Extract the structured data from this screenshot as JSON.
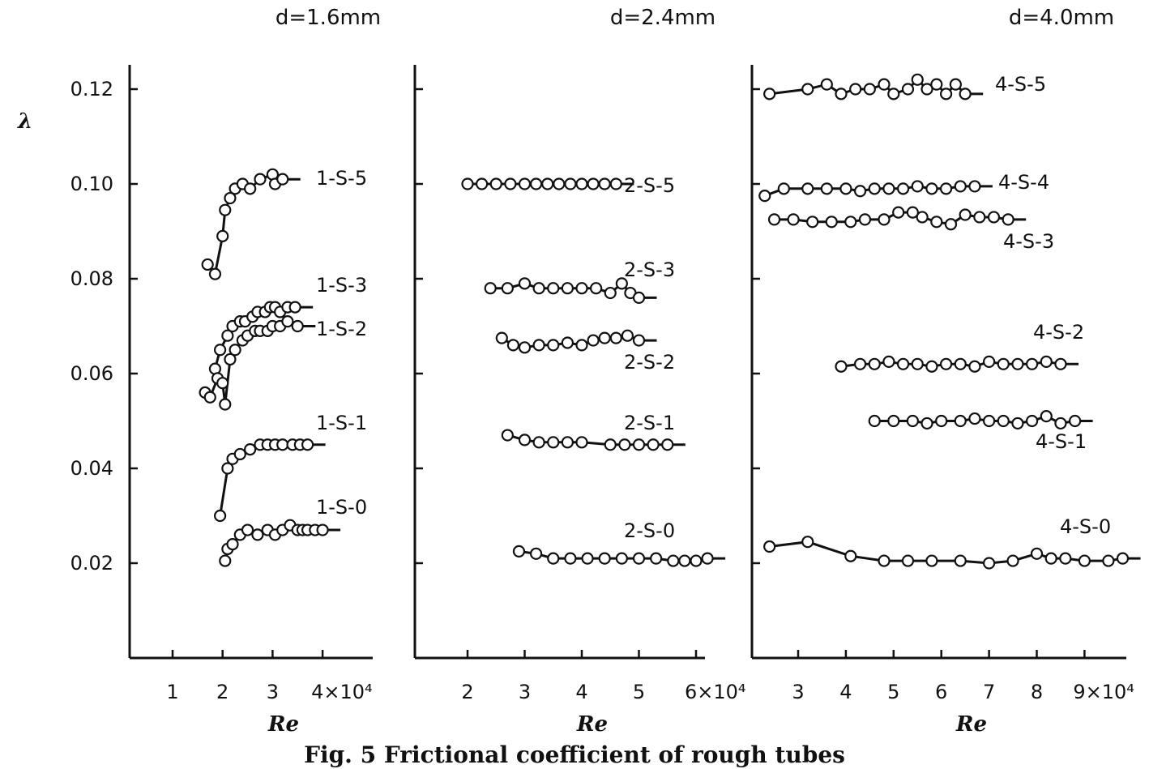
{
  "caption": "Fig. 5  Frictional coefficient of rough tubes",
  "y_label": "λ",
  "x_label": "Re",
  "chart_data": [
    {
      "type": "line",
      "title": "d=1.6mm",
      "xlabel": "Re",
      "ylabel": "λ",
      "xlim": [
        0,
        5
      ],
      "ylim": [
        0,
        0.12
      ],
      "x_ticks": [
        1,
        2,
        3,
        4
      ],
      "x_tick_labels": [
        "1",
        "2",
        "3",
        "4×10⁴"
      ],
      "y_ticks": [
        0.02,
        0.04,
        0.06,
        0.08,
        0.1,
        0.12
      ],
      "y_tick_labels": [
        "0.02",
        "0.04",
        "0.06",
        "0.08",
        "0.10",
        "0.12"
      ],
      "x_unit": "×10⁴",
      "series": [
        {
          "name": "1-S-5",
          "x": [
            1.7,
            1.85,
            2.0,
            2.05,
            2.15,
            2.25,
            2.4,
            2.55,
            2.75,
            3.0,
            3.05,
            3.2
          ],
          "y": [
            0.083,
            0.081,
            0.089,
            0.0945,
            0.097,
            0.099,
            0.1,
            0.099,
            0.101,
            0.102,
            0.1,
            0.101
          ]
        },
        {
          "name": "1-S-3",
          "x": [
            1.85,
            1.95,
            2.1,
            2.2,
            2.35,
            2.45,
            2.6,
            2.7,
            2.85,
            2.95,
            3.05,
            3.15,
            3.3,
            3.45
          ],
          "y": [
            0.061,
            0.065,
            0.068,
            0.07,
            0.071,
            0.071,
            0.072,
            0.073,
            0.073,
            0.074,
            0.074,
            0.073,
            0.074,
            0.074
          ]
        },
        {
          "name": "1-S-2",
          "x": [
            1.65,
            1.75,
            1.9,
            2.0,
            2.05,
            2.15,
            2.25,
            2.4,
            2.5,
            2.65,
            2.75,
            2.9,
            3.0,
            3.15,
            3.3,
            3.5
          ],
          "y": [
            0.056,
            0.055,
            0.059,
            0.058,
            0.0535,
            0.063,
            0.065,
            0.067,
            0.068,
            0.069,
            0.069,
            0.069,
            0.07,
            0.07,
            0.071,
            0.07
          ]
        },
        {
          "name": "1-S-1",
          "x": [
            1.95,
            2.1,
            2.2,
            2.35,
            2.55,
            2.75,
            2.9,
            3.05,
            3.2,
            3.4,
            3.55,
            3.7
          ],
          "y": [
            0.03,
            0.04,
            0.042,
            0.043,
            0.044,
            0.045,
            0.045,
            0.045,
            0.045,
            0.045,
            0.045,
            0.045
          ]
        },
        {
          "name": "1-S-0",
          "x": [
            2.05,
            2.1,
            2.2,
            2.35,
            2.5,
            2.7,
            2.9,
            3.05,
            3.2,
            3.35,
            3.5,
            3.6,
            3.7,
            3.85,
            4.0
          ],
          "y": [
            0.0205,
            0.023,
            0.024,
            0.026,
            0.027,
            0.026,
            0.027,
            0.026,
            0.027,
            0.028,
            0.027,
            0.027,
            0.027,
            0.027,
            0.027
          ]
        }
      ]
    },
    {
      "type": "line",
      "title": "d=2.4mm",
      "xlabel": "Re",
      "ylabel": "λ",
      "xlim": [
        1,
        7
      ],
      "ylim": [
        0,
        0.12
      ],
      "x_ticks": [
        2,
        3,
        4,
        5,
        6
      ],
      "x_tick_labels": [
        "2",
        "3",
        "4",
        "5",
        "6×10⁴"
      ],
      "y_ticks": [
        0.02,
        0.04,
        0.06,
        0.08,
        0.1,
        0.12
      ],
      "x_unit": "×10⁴",
      "series": [
        {
          "name": "2-S-5",
          "x": [
            2.0,
            2.25,
            2.5,
            2.75,
            3.0,
            3.2,
            3.4,
            3.6,
            3.8,
            4.0,
            4.2,
            4.4,
            4.6
          ],
          "y": [
            0.1,
            0.1,
            0.1,
            0.1,
            0.1,
            0.1,
            0.1,
            0.1,
            0.1,
            0.1,
            0.1,
            0.1,
            0.1
          ]
        },
        {
          "name": "2-S-3",
          "x": [
            2.4,
            2.7,
            3.0,
            3.25,
            3.5,
            3.75,
            4.0,
            4.25,
            4.5,
            4.7,
            4.85,
            5.0
          ],
          "y": [
            0.078,
            0.078,
            0.079,
            0.078,
            0.078,
            0.078,
            0.078,
            0.078,
            0.077,
            0.079,
            0.077,
            0.076
          ]
        },
        {
          "name": "2-S-2",
          "x": [
            2.6,
            2.8,
            3.0,
            3.25,
            3.5,
            3.75,
            4.0,
            4.2,
            4.4,
            4.6,
            4.8,
            5.0
          ],
          "y": [
            0.0675,
            0.066,
            0.0655,
            0.066,
            0.066,
            0.0665,
            0.066,
            0.067,
            0.0675,
            0.0675,
            0.068,
            0.067
          ]
        },
        {
          "name": "2-S-1",
          "x": [
            2.7,
            3.0,
            3.25,
            3.5,
            3.75,
            4.0,
            4.5,
            4.75,
            5.0,
            5.25,
            5.5
          ],
          "y": [
            0.047,
            0.046,
            0.0455,
            0.0455,
            0.0455,
            0.0455,
            0.045,
            0.045,
            0.045,
            0.045,
            0.045
          ]
        },
        {
          "name": "2-S-0",
          "x": [
            2.9,
            3.2,
            3.5,
            3.8,
            4.1,
            4.4,
            4.7,
            5.0,
            5.3,
            5.6,
            5.8,
            6.0,
            6.2
          ],
          "y": [
            0.0225,
            0.022,
            0.021,
            0.021,
            0.021,
            0.021,
            0.021,
            0.021,
            0.021,
            0.0205,
            0.0205,
            0.0205,
            0.021
          ]
        }
      ]
    },
    {
      "type": "line",
      "title": "d=4.0mm",
      "xlabel": "Re",
      "ylabel": "λ",
      "xlim": [
        2,
        10
      ],
      "ylim": [
        0,
        0.12
      ],
      "x_ticks": [
        3,
        4,
        5,
        6,
        7,
        8,
        9
      ],
      "x_tick_labels": [
        "3",
        "4",
        "5",
        "6",
        "7",
        "8",
        "9×10⁴"
      ],
      "y_ticks": [
        0.02,
        0.04,
        0.06,
        0.08,
        0.1,
        0.12
      ],
      "x_unit": "×10⁴",
      "series": [
        {
          "name": "4-S-5",
          "x": [
            2.4,
            3.2,
            3.6,
            3.9,
            4.2,
            4.5,
            4.8,
            5.0,
            5.3,
            5.5,
            5.7,
            5.9,
            6.1,
            6.3,
            6.5
          ],
          "y": [
            0.119,
            0.12,
            0.121,
            0.119,
            0.12,
            0.12,
            0.121,
            0.119,
            0.12,
            0.122,
            0.12,
            0.121,
            0.119,
            0.121,
            0.119
          ]
        },
        {
          "name": "4-S-4",
          "x": [
            2.3,
            2.7,
            3.2,
            3.6,
            4.0,
            4.3,
            4.6,
            4.9,
            5.2,
            5.5,
            5.8,
            6.1,
            6.4,
            6.7
          ],
          "y": [
            0.0975,
            0.099,
            0.099,
            0.099,
            0.099,
            0.0985,
            0.099,
            0.099,
            0.099,
            0.0995,
            0.099,
            0.099,
            0.0995,
            0.0995
          ]
        },
        {
          "name": "4-S-3",
          "x": [
            2.5,
            2.9,
            3.3,
            3.7,
            4.1,
            4.4,
            4.8,
            5.1,
            5.4,
            5.6,
            5.9,
            6.2,
            6.5,
            6.8,
            7.1,
            7.4
          ],
          "y": [
            0.0925,
            0.0925,
            0.092,
            0.092,
            0.092,
            0.0925,
            0.0925,
            0.094,
            0.094,
            0.093,
            0.092,
            0.0915,
            0.0935,
            0.093,
            0.093,
            0.0925
          ]
        },
        {
          "name": "4-S-2",
          "x": [
            3.9,
            4.3,
            4.6,
            4.9,
            5.2,
            5.5,
            5.8,
            6.1,
            6.4,
            6.7,
            7.0,
            7.3,
            7.6,
            7.9,
            8.2,
            8.5
          ],
          "y": [
            0.0615,
            0.062,
            0.062,
            0.0625,
            0.062,
            0.062,
            0.0615,
            0.062,
            0.062,
            0.0615,
            0.0625,
            0.062,
            0.062,
            0.062,
            0.0625,
            0.062
          ]
        },
        {
          "name": "4-S-1",
          "x": [
            4.6,
            5.0,
            5.4,
            5.7,
            6.0,
            6.4,
            6.7,
            7.0,
            7.3,
            7.6,
            7.9,
            8.2,
            8.5,
            8.8
          ],
          "y": [
            0.05,
            0.05,
            0.05,
            0.0495,
            0.05,
            0.05,
            0.0505,
            0.05,
            0.05,
            0.0495,
            0.05,
            0.051,
            0.0495,
            0.05
          ]
        },
        {
          "name": "4-S-0",
          "x": [
            2.4,
            3.2,
            4.1,
            4.8,
            5.3,
            5.8,
            6.4,
            7.0,
            7.5,
            8.0,
            8.3,
            8.6,
            9.0,
            9.5,
            9.8
          ],
          "y": [
            0.0235,
            0.0245,
            0.0215,
            0.0205,
            0.0205,
            0.0205,
            0.0205,
            0.02,
            0.0205,
            0.022,
            0.021,
            0.021,
            0.0205,
            0.0205,
            0.021
          ]
        }
      ]
    }
  ]
}
